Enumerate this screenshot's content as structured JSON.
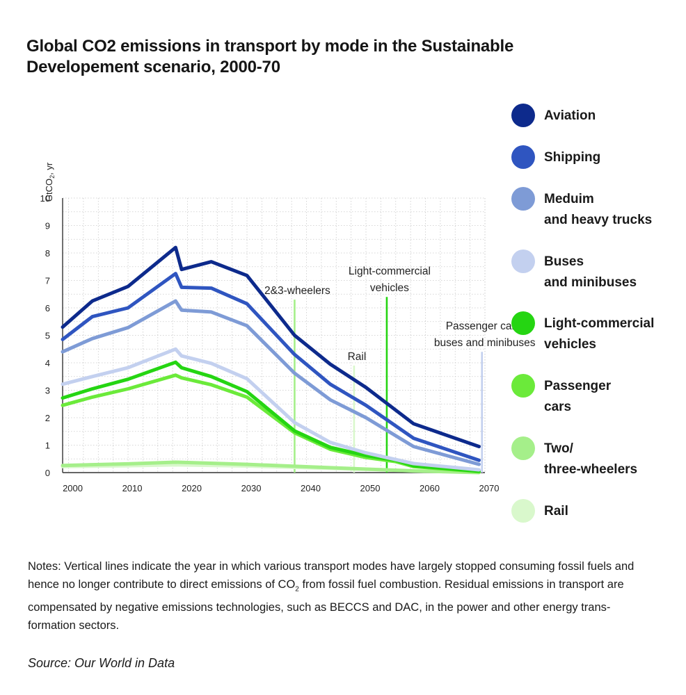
{
  "title_lines": [
    "Global CO2 emissions in transport by mode in the Sustainable",
    "Developement scenario, 2000-70"
  ],
  "legend": [
    {
      "lines": [
        "Aviation"
      ],
      "color": "#0d2a8c"
    },
    {
      "lines": [
        "Shipping"
      ],
      "color": "#2f55c0"
    },
    {
      "lines": [
        "Meduim",
        "and heavy trucks"
      ],
      "color": "#7e9bd6"
    },
    {
      "lines": [
        "Buses",
        "and minibuses"
      ],
      "color": "#c3d0ef"
    },
    {
      "lines": [
        "Light-commercial",
        "vehicles"
      ],
      "color": "#25d512"
    },
    {
      "lines": [
        "Passenger",
        "cars"
      ],
      "color": "#6bea3a"
    },
    {
      "lines": [
        "Two/",
        "three-wheelers"
      ],
      "color": "#a5ef8a"
    },
    {
      "lines": [
        "Rail"
      ],
      "color": "#d9f8cc"
    }
  ],
  "notes": {
    "before_sub": "Notes: Vertical lines indicate the year in which various transport modes have largely stopped consuming fossil fuels and hence no longer contribute to direct emissions of CO",
    "sub": "2",
    "after_sub": " from fossil fuel combustion. Residual emissions in transport are compensated by negative emissions technologies, such as BECCS and DAC, in the power and other energy trans-formation sectors."
  },
  "source": "Source: Our World in Data",
  "chart_data": {
    "type": "line",
    "ylabel": {
      "main": "GtCO",
      "sub": "2",
      "suffix": ", yr"
    },
    "xlim": [
      1999,
      2070
    ],
    "ylim": [
      0,
      10
    ],
    "xticks": [
      2000,
      2010,
      2020,
      2030,
      2040,
      2050,
      2060,
      2070
    ],
    "yticks": [
      0,
      1,
      2,
      3,
      4,
      5,
      6,
      7,
      8,
      9,
      10
    ],
    "grid": true,
    "series": [
      {
        "name": "Rail",
        "color": "#d9f8cc",
        "x": [
          1999,
          2010,
          2018,
          2030,
          2045,
          2058,
          2069
        ],
        "y": [
          0.22,
          0.25,
          0.28,
          0.24,
          0.15,
          0.07,
          0.01
        ]
      },
      {
        "name": "Two/three-wheelers",
        "color": "#a5ef8a",
        "x": [
          1999,
          2010,
          2018,
          2030,
          2045,
          2058,
          2069
        ],
        "y": [
          0.26,
          0.32,
          0.38,
          0.3,
          0.17,
          0.06,
          0.0
        ]
      },
      {
        "name": "Passenger cars",
        "color": "#6bea3a",
        "x": [
          1999,
          2004,
          2010,
          2018,
          2019,
          2024,
          2030,
          2038,
          2044,
          2050,
          2055,
          2058,
          2069
        ],
        "y": [
          2.45,
          2.75,
          3.05,
          3.55,
          3.45,
          3.2,
          2.75,
          1.45,
          0.85,
          0.55,
          0.4,
          0.22,
          0.03
        ]
      },
      {
        "name": "Light-commercial vehicles",
        "color": "#25d512",
        "x": [
          1999,
          2004,
          2010,
          2018,
          2019,
          2024,
          2030,
          2038,
          2044,
          2050,
          2055,
          2058,
          2069
        ],
        "y": [
          2.72,
          3.05,
          3.4,
          4.02,
          3.82,
          3.5,
          2.95,
          1.52,
          0.92,
          0.62,
          0.45,
          0.25,
          0.05
        ]
      },
      {
        "name": "Buses and minibuses",
        "color": "#c3d0ef",
        "x": [
          1999,
          2004,
          2010,
          2018,
          2019,
          2024,
          2030,
          2038,
          2044,
          2050,
          2058,
          2069
        ],
        "y": [
          3.22,
          3.5,
          3.82,
          4.5,
          4.25,
          3.98,
          3.42,
          1.82,
          1.1,
          0.72,
          0.33,
          0.1
        ]
      },
      {
        "name": "Meduim and heavy trucks",
        "color": "#7e9bd6",
        "x": [
          1999,
          2004,
          2010,
          2018,
          2019,
          2024,
          2030,
          2038,
          2044,
          2050,
          2058,
          2069
        ],
        "y": [
          4.4,
          4.88,
          5.28,
          6.25,
          5.92,
          5.85,
          5.35,
          3.62,
          2.65,
          2.0,
          0.95,
          0.3
        ]
      },
      {
        "name": "Shipping",
        "color": "#2f55c0",
        "x": [
          1999,
          2004,
          2010,
          2018,
          2019,
          2024,
          2030,
          2038,
          2044,
          2050,
          2058,
          2069
        ],
        "y": [
          4.85,
          5.68,
          6.0,
          7.25,
          6.75,
          6.72,
          6.15,
          4.3,
          3.22,
          2.45,
          1.25,
          0.45
        ]
      },
      {
        "name": "Aviation",
        "color": "#0d2a8c",
        "x": [
          1999,
          2004,
          2010,
          2018,
          2019,
          2024,
          2030,
          2038,
          2044,
          2050,
          2058,
          2069
        ],
        "y": [
          5.3,
          6.25,
          6.78,
          8.2,
          7.4,
          7.68,
          7.18,
          5.0,
          3.95,
          3.1,
          1.78,
          0.95
        ]
      }
    ],
    "annotations": [
      {
        "lines": [
          "2&3-wheelers"
        ],
        "x": 2038.0,
        "y_top": 6.3,
        "color": "#a5ef8a"
      },
      {
        "lines": [
          "Rail"
        ],
        "x": 2048.0,
        "y_top": 3.9,
        "color": "#d9f8cc"
      },
      {
        "lines": [
          "Light-commercial",
          "vehicles"
        ],
        "x": 2053.5,
        "y_top": 6.4,
        "color": "#25d512"
      },
      {
        "lines": [
          "Passenger cars,",
          "buses and minibuses"
        ],
        "x": 2069.5,
        "y_top": 4.4,
        "color": "#c3d0ef"
      }
    ]
  }
}
